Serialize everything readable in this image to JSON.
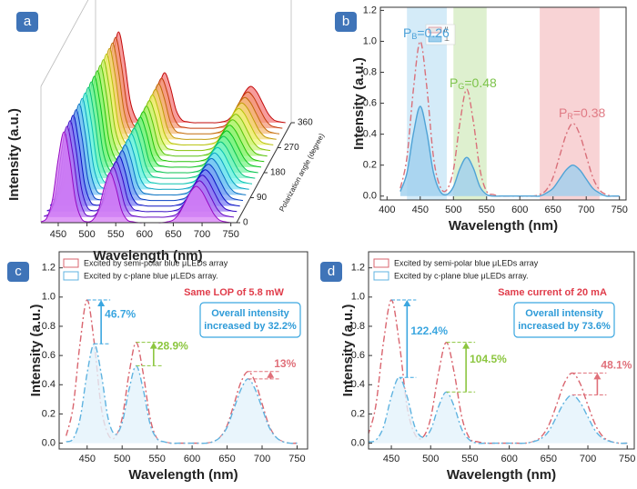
{
  "chart_data": [
    {
      "type": "waterfall3d",
      "label": "a",
      "x": [
        420,
        430,
        440,
        450,
        460,
        470,
        480,
        490,
        500,
        510,
        520,
        530,
        540,
        550,
        560,
        570,
        580,
        590,
        600,
        610,
        620,
        630,
        640,
        650,
        660,
        670,
        680,
        690,
        700,
        710,
        720,
        730,
        740,
        750
      ],
      "values": [
        0.01,
        0.05,
        0.25,
        0.7,
        1,
        0.7,
        0.25,
        0.05,
        0.01,
        0.03,
        0.14,
        0.39,
        0.55,
        0.39,
        0.14,
        0.03,
        0.01,
        0,
        0,
        0,
        0,
        0,
        0.01,
        0.03,
        0.1,
        0.22,
        0.34,
        0.4,
        0.34,
        0.22,
        0.1,
        0.03,
        0.01,
        0
      ],
      "xlim": [
        420,
        760
      ],
      "xticks": [
        450,
        500,
        550,
        600,
        650,
        700,
        750
      ],
      "depth_lim": [
        0,
        360
      ],
      "depth_ticks": [
        0,
        90,
        180,
        270,
        360
      ],
      "xlabel": "Wavelength (nm)",
      "ylabel": "Intensity (a.u.)",
      "depth_label": "Polarization angle (degree)"
    },
    {
      "type": "line",
      "label": "b",
      "x": [
        420,
        430,
        440,
        450,
        460,
        470,
        480,
        490,
        500,
        510,
        520,
        530,
        540,
        550,
        560,
        570,
        580,
        590,
        600,
        610,
        620,
        630,
        640,
        650,
        660,
        670,
        680,
        690,
        700,
        710,
        720,
        730,
        740,
        750
      ],
      "series": [
        {
          "name": "//",
          "color": "#d9707a",
          "dash": true,
          "values": [
            0.05,
            0.25,
            0.7,
            1,
            0.7,
            0.25,
            0.06,
            0.04,
            0.17,
            0.48,
            0.69,
            0.48,
            0.17,
            0.03,
            0.01,
            0,
            0,
            0,
            0,
            0,
            0,
            0.01,
            0.04,
            0.12,
            0.26,
            0.4,
            0.47,
            0.4,
            0.26,
            0.12,
            0.04,
            0.01,
            0,
            0
          ]
        },
        {
          "name": "⊥",
          "color": "#4fa3d6",
          "fill": "#9fd0ee",
          "dash": false,
          "values": [
            0.03,
            0.15,
            0.41,
            0.58,
            0.41,
            0.15,
            0.03,
            0.01,
            0.06,
            0.18,
            0.25,
            0.18,
            0.06,
            0.01,
            0,
            0,
            0,
            0,
            0,
            0,
            0,
            0,
            0.02,
            0.05,
            0.11,
            0.17,
            0.2,
            0.17,
            0.11,
            0.05,
            0.02,
            0,
            0,
            0
          ]
        }
      ],
      "bands": [
        {
          "x0": 430,
          "x1": 490,
          "color": "#d4ebf8"
        },
        {
          "x0": 500,
          "x1": 550,
          "color": "#def0cf"
        },
        {
          "x0": 630,
          "x1": 720,
          "color": "#f8d3d5"
        }
      ],
      "peak_labels": [
        {
          "main": "P",
          "sub": "B",
          "rest": "=0.26",
          "color": "#4aa0d8"
        },
        {
          "main": "P",
          "sub": "G",
          "rest": "=0.48",
          "color": "#7cc34a"
        },
        {
          "main": "P",
          "sub": "R",
          "rest": "=0.38",
          "color": "#e07a84"
        }
      ],
      "xlim": [
        390,
        760
      ],
      "xticks": [
        400,
        450,
        500,
        550,
        600,
        650,
        700,
        750
      ],
      "ylim": [
        -0.025,
        1.22
      ],
      "yticks": [
        {
          "value": 0,
          "label": "0.0"
        },
        {
          "value": 0.2,
          "label": "0.2"
        },
        {
          "value": 0.4,
          "label": "0.4"
        },
        {
          "value": 0.6,
          "label": "0.6"
        },
        {
          "value": 0.8,
          "label": "0.8"
        },
        {
          "value": 1,
          "label": "1.0"
        },
        {
          "value": 1.2,
          "label": "1.2"
        }
      ],
      "xlabel": "Wavelength (nm)",
      "ylabel": "Intensity (a.u.)"
    },
    {
      "type": "line",
      "label": "c",
      "x": [
        420,
        430,
        440,
        450,
        460,
        470,
        480,
        490,
        500,
        510,
        520,
        530,
        540,
        550,
        560,
        570,
        580,
        590,
        600,
        610,
        620,
        630,
        640,
        650,
        660,
        670,
        680,
        690,
        700,
        710,
        720,
        730,
        740,
        750
      ],
      "series": [
        {
          "name": "Excited by semi-polar blue μLEDs array",
          "color": "#d9656f",
          "dash": true,
          "values": [
            0.05,
            0.25,
            0.69,
            0.98,
            0.69,
            0.25,
            0.06,
            0.04,
            0.17,
            0.48,
            0.69,
            0.48,
            0.17,
            0.03,
            0.01,
            0,
            0,
            0,
            0,
            0,
            0,
            0.01,
            0.04,
            0.12,
            0.27,
            0.42,
            0.49,
            0.42,
            0.27,
            0.12,
            0.04,
            0.01,
            0,
            0
          ]
        },
        {
          "name": "Excited by c-plane blue μLEDs array.",
          "color": "#5fb3e0",
          "fill": "#e3f2fb",
          "dash": true,
          "values": [
            0.01,
            0.03,
            0.17,
            0.48,
            0.68,
            0.48,
            0.17,
            0.06,
            0.14,
            0.37,
            0.53,
            0.37,
            0.13,
            0.03,
            0.01,
            0,
            0,
            0,
            0,
            0,
            0,
            0.01,
            0.04,
            0.11,
            0.24,
            0.37,
            0.44,
            0.37,
            0.24,
            0.11,
            0.04,
            0.01,
            0,
            0
          ]
        }
      ],
      "note": "Same LOP of 5.8 mW",
      "box_lines": [
        "Overall intensity",
        "increased by 32.2%"
      ],
      "arrow_labels": [
        {
          "text": "46.7%",
          "color": "#3aa6e0"
        },
        {
          "text": "28.9%",
          "color": "#8cc63f"
        },
        {
          "text": "13%",
          "color": "#e0707a"
        }
      ],
      "xlim": [
        410,
        765
      ],
      "xticks": [
        450,
        500,
        550,
        600,
        650,
        700,
        750
      ],
      "ylim": [
        -0.04,
        1.31
      ],
      "yticks": [
        {
          "value": 0,
          "label": "0.0"
        },
        {
          "value": 0.2,
          "label": "0.2"
        },
        {
          "value": 0.4,
          "label": "0.4"
        },
        {
          "value": 0.6,
          "label": "0.6"
        },
        {
          "value": 0.8,
          "label": "0.8"
        },
        {
          "value": 1,
          "label": "1.0"
        },
        {
          "value": 1.2,
          "label": "1.2"
        }
      ],
      "xlabel": "Wavelength (nm)",
      "ylabel": "Intensity (a.u.)"
    },
    {
      "type": "line",
      "label": "d",
      "x": [
        420,
        430,
        440,
        450,
        460,
        470,
        480,
        490,
        500,
        510,
        520,
        530,
        540,
        550,
        560,
        570,
        580,
        590,
        600,
        610,
        620,
        630,
        640,
        650,
        660,
        670,
        680,
        690,
        700,
        710,
        720,
        730,
        740,
        750
      ],
      "series": [
        {
          "name": "Excited by semi-polar blue μLEDs array",
          "color": "#d9656f",
          "dash": true,
          "values": [
            0.05,
            0.25,
            0.69,
            0.98,
            0.69,
            0.25,
            0.06,
            0.04,
            0.17,
            0.48,
            0.69,
            0.48,
            0.17,
            0.03,
            0.01,
            0,
            0,
            0,
            0,
            0,
            0,
            0.01,
            0.04,
            0.12,
            0.26,
            0.41,
            0.48,
            0.41,
            0.26,
            0.12,
            0.04,
            0.01,
            0,
            0
          ]
        },
        {
          "name": "Excited by c-plane blue μLEDs array.",
          "color": "#5fb3e0",
          "fill": "#e3f2fb",
          "dash": true,
          "values": [
            0.01,
            0.02,
            0.11,
            0.32,
            0.45,
            0.32,
            0.11,
            0.04,
            0.09,
            0.25,
            0.35,
            0.25,
            0.09,
            0.02,
            0,
            0,
            0,
            0,
            0,
            0,
            0,
            0.01,
            0.03,
            0.08,
            0.18,
            0.28,
            0.33,
            0.28,
            0.18,
            0.08,
            0.03,
            0.01,
            0,
            0
          ]
        }
      ],
      "note": "Same current of 20 mA",
      "box_lines": [
        "Overall intensity",
        "increased by 73.6%"
      ],
      "arrow_labels": [
        {
          "text": "122.4%",
          "color": "#3aa6e0"
        },
        {
          "text": "104.5%",
          "color": "#8cc63f"
        },
        {
          "text": "48.1%",
          "color": "#e0707a"
        }
      ],
      "xlim": [
        421,
        759
      ],
      "xticks": [
        450,
        500,
        550,
        600,
        650,
        700,
        750
      ],
      "ylim": [
        -0.04,
        1.31
      ],
      "yticks": [
        {
          "value": 0,
          "label": "0.0"
        },
        {
          "value": 0.2,
          "label": "0.2"
        },
        {
          "value": 0.4,
          "label": "0.4"
        },
        {
          "value": 0.6,
          "label": "0.6"
        },
        {
          "value": 0.8,
          "label": "0.8"
        },
        {
          "value": 1,
          "label": "1.0"
        },
        {
          "value": 1.2,
          "label": "1.2"
        }
      ],
      "xlabel": "Wavelength (nm)",
      "ylabel": "Intensity (a.u.)"
    }
  ]
}
